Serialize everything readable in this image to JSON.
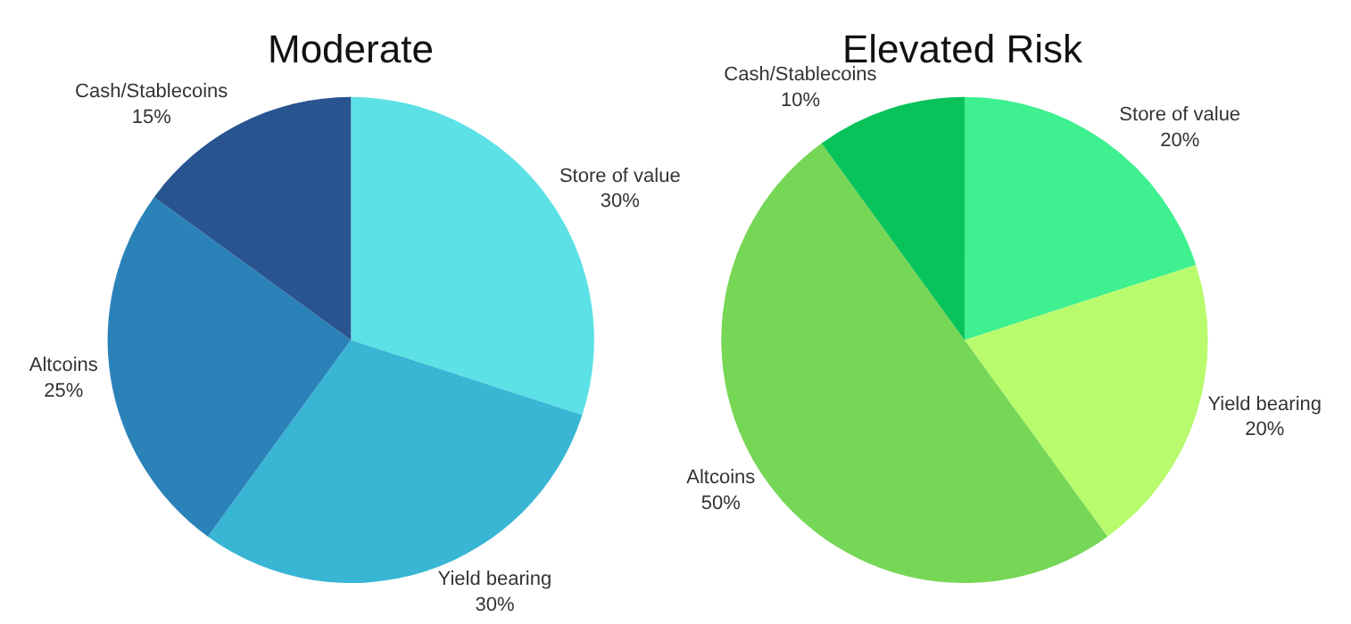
{
  "chart_data": [
    {
      "type": "pie",
      "title": "Moderate",
      "categories": [
        "Store of value",
        "Yield bearing",
        "Altcoins",
        "Cash/Stablecoins"
      ],
      "values": [
        30,
        30,
        25,
        15
      ],
      "value_labels": [
        "30%",
        "30%",
        "25%",
        "15%"
      ],
      "colors": [
        "#5ce1e6",
        "#38b6d4",
        "#2a82b8",
        "#285490"
      ],
      "legend": false
    },
    {
      "type": "pie",
      "title": "Elevated Risk",
      "categories": [
        "Store of value",
        "Yield bearing",
        "Altcoins",
        "Cash/Stablecoins"
      ],
      "values": [
        20,
        20,
        50,
        10
      ],
      "value_labels": [
        "20%",
        "20%",
        "50%",
        "10%"
      ],
      "colors": [
        "#3ef08f",
        "#b8fb6c",
        "#76d655",
        "#08c25a"
      ],
      "legend": false
    }
  ]
}
